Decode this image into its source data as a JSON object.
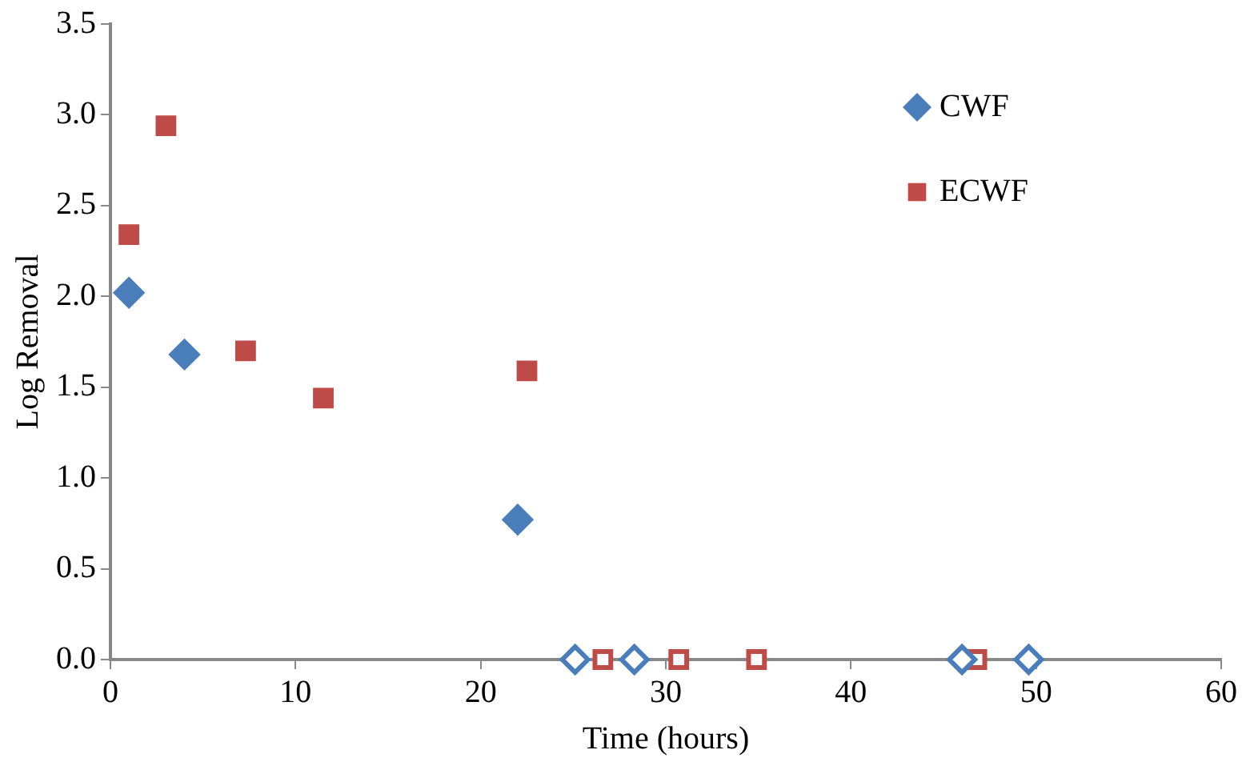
{
  "chart_data": {
    "type": "scatter",
    "xlabel": "Time (hours)",
    "ylabel": "Log Removal",
    "xlim": [
      0,
      60
    ],
    "xticks": [
      0,
      10,
      20,
      30,
      40,
      50,
      60
    ],
    "ylim": [
      0,
      3.5
    ],
    "yticks": [
      {
        "value": 0,
        "label": "0.0"
      },
      {
        "value": 0.5,
        "label": "0.5"
      },
      {
        "value": 1,
        "label": "1.0"
      },
      {
        "value": 1.5,
        "label": "1.5"
      },
      {
        "value": 2,
        "label": "2.0"
      },
      {
        "value": 2.5,
        "label": "2.5"
      },
      {
        "value": 3,
        "label": "3.0"
      },
      {
        "value": 3.5,
        "label": "3.5"
      }
    ],
    "grid": false,
    "legend": "top right",
    "series": [
      {
        "name": "CWF",
        "color": "#4a7ebb",
        "marker": "diamond",
        "x": [
          1,
          4,
          22,
          25.1,
          28.3,
          46,
          49.6
        ],
        "values": [
          2.02,
          1.68,
          0.77,
          0,
          0,
          0,
          0
        ],
        "colors": [
          "#4a7ebb",
          "#4a7ebb",
          "#4a7ebb",
          "#ffffff",
          "#ffffff",
          "#ffffff",
          "#ffffff"
        ]
      },
      {
        "name": "ECWF",
        "color": "#be4b48",
        "marker": "square",
        "x": [
          1,
          3,
          7.3,
          11.5,
          22.5,
          26.6,
          30.7,
          34.9,
          46.8
        ],
        "values": [
          2.34,
          2.94,
          1.7,
          1.44,
          1.59,
          0,
          0,
          0,
          0
        ],
        "colors": [
          "#be4b48",
          "#be4b48",
          "#be4b48",
          "#be4b48",
          "#be4b48",
          "#ffffff",
          "#ffffff",
          "#ffffff",
          "#ffffff"
        ]
      }
    ]
  }
}
